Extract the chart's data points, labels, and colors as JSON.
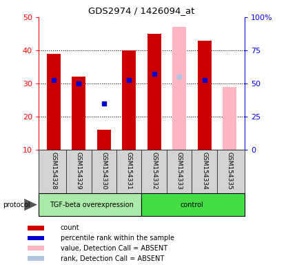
{
  "title": "GDS2974 / 1426094_at",
  "samples": [
    "GSM154328",
    "GSM154329",
    "GSM154330",
    "GSM154331",
    "GSM154332",
    "GSM154333",
    "GSM154334",
    "GSM154335"
  ],
  "count_values": [
    39,
    32,
    16,
    40,
    45,
    null,
    43,
    null
  ],
  "rank_values": [
    31,
    30,
    null,
    31,
    33,
    null,
    31,
    null
  ],
  "rank_dot_only": [
    null,
    null,
    24,
    null,
    null,
    null,
    null,
    null
  ],
  "absent_value_bars": [
    null,
    null,
    null,
    null,
    null,
    47,
    null,
    29
  ],
  "absent_rank_dots": [
    null,
    null,
    null,
    null,
    null,
    32,
    null,
    null
  ],
  "ylim_left": [
    10,
    50
  ],
  "ylim_right": [
    0,
    100
  ],
  "yticks_left": [
    10,
    20,
    30,
    40,
    50
  ],
  "yticks_right": [
    0,
    25,
    50,
    75,
    100
  ],
  "ytick_labels_right": [
    "0",
    "25",
    "50",
    "75",
    "100%"
  ],
  "bar_color_red": "#cc0000",
  "bar_color_pink": "#ffb6c1",
  "dot_color_blue": "#0000cc",
  "dot_color_light_blue": "#b0c4de",
  "tgf_color": "#aaeaaa",
  "control_color": "#44dd44",
  "label_bg": "#d3d3d3",
  "legend_items": [
    {
      "label": "count",
      "color": "#cc0000"
    },
    {
      "label": "percentile rank within the sample",
      "color": "#0000cc"
    },
    {
      "label": "value, Detection Call = ABSENT",
      "color": "#ffb6c1"
    },
    {
      "label": "rank, Detection Call = ABSENT",
      "color": "#b0c4de"
    }
  ]
}
